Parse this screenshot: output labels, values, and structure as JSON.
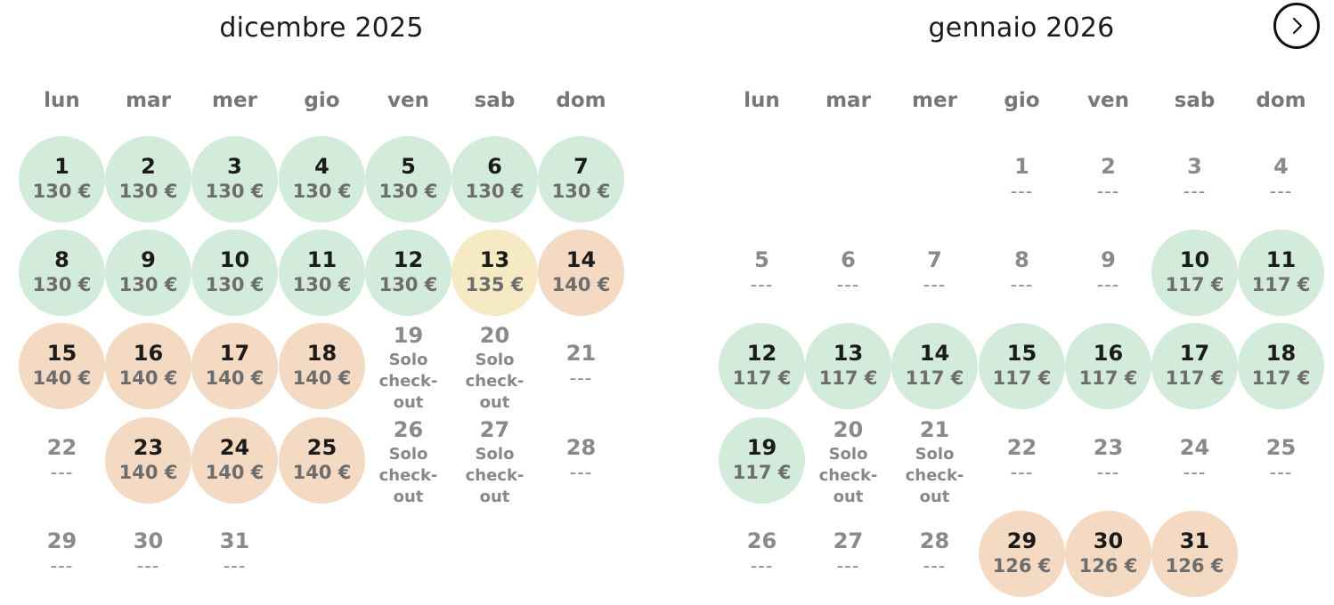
{
  "navigation": {
    "next_icon": "chevron-right-icon"
  },
  "weekdays": [
    "lun",
    "mar",
    "mer",
    "gio",
    "ven",
    "sab",
    "dom"
  ],
  "colors": {
    "green": "#d3ebdb",
    "yellow": "#f5eac3",
    "orange": "#f4d9c3"
  },
  "months": [
    {
      "title": "dicembre 2025",
      "first_weekday_index": 0,
      "days": [
        {
          "day": "1",
          "price": "130 €",
          "status": "green"
        },
        {
          "day": "2",
          "price": "130 €",
          "status": "green"
        },
        {
          "day": "3",
          "price": "130 €",
          "status": "green"
        },
        {
          "day": "4",
          "price": "130 €",
          "status": "green"
        },
        {
          "day": "5",
          "price": "130 €",
          "status": "green"
        },
        {
          "day": "6",
          "price": "130 €",
          "status": "green"
        },
        {
          "day": "7",
          "price": "130 €",
          "status": "green"
        },
        {
          "day": "8",
          "price": "130 €",
          "status": "green"
        },
        {
          "day": "9",
          "price": "130 €",
          "status": "green"
        },
        {
          "day": "10",
          "price": "130 €",
          "status": "green"
        },
        {
          "day": "11",
          "price": "130 €",
          "status": "green"
        },
        {
          "day": "12",
          "price": "130 €",
          "status": "green"
        },
        {
          "day": "13",
          "price": "135 €",
          "status": "yellow"
        },
        {
          "day": "14",
          "price": "140 €",
          "status": "orange"
        },
        {
          "day": "15",
          "price": "140 €",
          "status": "orange"
        },
        {
          "day": "16",
          "price": "140 €",
          "status": "orange"
        },
        {
          "day": "17",
          "price": "140 €",
          "status": "orange"
        },
        {
          "day": "18",
          "price": "140 €",
          "status": "orange"
        },
        {
          "day": "19",
          "note": "Solo\ncheck-\nout",
          "status": "checkout"
        },
        {
          "day": "20",
          "note": "Solo\ncheck-\nout",
          "status": "checkout"
        },
        {
          "day": "21",
          "price": "---",
          "status": "empty"
        },
        {
          "day": "22",
          "price": "---",
          "status": "empty"
        },
        {
          "day": "23",
          "price": "140 €",
          "status": "orange"
        },
        {
          "day": "24",
          "price": "140 €",
          "status": "orange"
        },
        {
          "day": "25",
          "price": "140 €",
          "status": "orange"
        },
        {
          "day": "26",
          "note": "Solo\ncheck-\nout",
          "status": "checkout"
        },
        {
          "day": "27",
          "note": "Solo\ncheck-\nout",
          "status": "checkout"
        },
        {
          "day": "28",
          "price": "---",
          "status": "empty"
        },
        {
          "day": "29",
          "price": "---",
          "status": "empty"
        },
        {
          "day": "30",
          "price": "---",
          "status": "empty"
        },
        {
          "day": "31",
          "price": "---",
          "status": "empty"
        }
      ]
    },
    {
      "title": "gennaio 2026",
      "first_weekday_index": 3,
      "days": [
        {
          "day": "1",
          "price": "---",
          "status": "empty"
        },
        {
          "day": "2",
          "price": "---",
          "status": "empty"
        },
        {
          "day": "3",
          "price": "---",
          "status": "empty"
        },
        {
          "day": "4",
          "price": "---",
          "status": "empty"
        },
        {
          "day": "5",
          "price": "---",
          "status": "empty"
        },
        {
          "day": "6",
          "price": "---",
          "status": "empty"
        },
        {
          "day": "7",
          "price": "---",
          "status": "empty"
        },
        {
          "day": "8",
          "price": "---",
          "status": "empty"
        },
        {
          "day": "9",
          "price": "---",
          "status": "empty"
        },
        {
          "day": "10",
          "price": "117 €",
          "status": "green"
        },
        {
          "day": "11",
          "price": "117 €",
          "status": "green"
        },
        {
          "day": "12",
          "price": "117 €",
          "status": "green"
        },
        {
          "day": "13",
          "price": "117 €",
          "status": "green"
        },
        {
          "day": "14",
          "price": "117 €",
          "status": "green"
        },
        {
          "day": "15",
          "price": "117 €",
          "status": "green"
        },
        {
          "day": "16",
          "price": "117 €",
          "status": "green"
        },
        {
          "day": "17",
          "price": "117 €",
          "status": "green"
        },
        {
          "day": "18",
          "price": "117 €",
          "status": "green"
        },
        {
          "day": "19",
          "price": "117 €",
          "status": "green"
        },
        {
          "day": "20",
          "note": "Solo\ncheck-\nout",
          "status": "checkout"
        },
        {
          "day": "21",
          "note": "Solo\ncheck-\nout",
          "status": "checkout"
        },
        {
          "day": "22",
          "price": "---",
          "status": "empty"
        },
        {
          "day": "23",
          "price": "---",
          "status": "empty"
        },
        {
          "day": "24",
          "price": "---",
          "status": "empty"
        },
        {
          "day": "25",
          "price": "---",
          "status": "empty"
        },
        {
          "day": "26",
          "price": "---",
          "status": "empty"
        },
        {
          "day": "27",
          "price": "---",
          "status": "empty"
        },
        {
          "day": "28",
          "price": "---",
          "status": "empty"
        },
        {
          "day": "29",
          "price": "126 €",
          "status": "orange"
        },
        {
          "day": "30",
          "price": "126 €",
          "status": "orange"
        },
        {
          "day": "31",
          "price": "126 €",
          "status": "orange"
        }
      ]
    }
  ]
}
